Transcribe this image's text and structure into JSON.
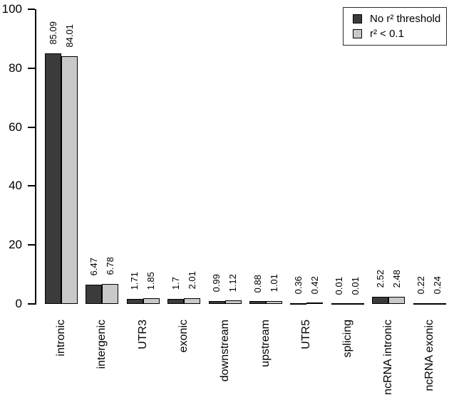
{
  "chart_data": {
    "type": "bar",
    "title": "",
    "xlabel": "",
    "ylabel": "",
    "categories": [
      "intronic",
      "intergenic",
      "UTR3",
      "exonic",
      "downstream",
      "upstream",
      "UTR5",
      "splicing",
      "ncRNA intronic",
      "ncRNA exonic"
    ],
    "series": [
      {
        "name": "No r² threshold",
        "color": "#3b3b3b",
        "values": [
          85.09,
          6.47,
          1.71,
          1.7,
          0.99,
          0.88,
          0.36,
          0.01,
          2.52,
          0.22
        ]
      },
      {
        "name": "r² < 0.1",
        "color": "#c9c9c9",
        "values": [
          84.01,
          6.78,
          1.85,
          2.01,
          1.12,
          1.01,
          0.42,
          0.01,
          2.48,
          0.24
        ]
      }
    ],
    "value_labels": [
      [
        "85.09",
        "84.01"
      ],
      [
        "6.47",
        "6.78"
      ],
      [
        "1.71",
        "1.85"
      ],
      [
        "1.7",
        "2.01"
      ],
      [
        "0.99",
        "1.12"
      ],
      [
        "0.88",
        "1.01"
      ],
      [
        "0.36",
        "0.42"
      ],
      [
        "0.01",
        "0.01"
      ],
      [
        "2.52",
        "2.48"
      ],
      [
        "0.22",
        "0.24"
      ]
    ],
    "ylim": [
      0,
      100
    ],
    "yticks": [
      0,
      20,
      40,
      60,
      80,
      100
    ],
    "grid": false,
    "legend_position": "top-right",
    "bar_border_color": "#000000",
    "axis_color": "#000000",
    "background_color": "#ffffff"
  }
}
